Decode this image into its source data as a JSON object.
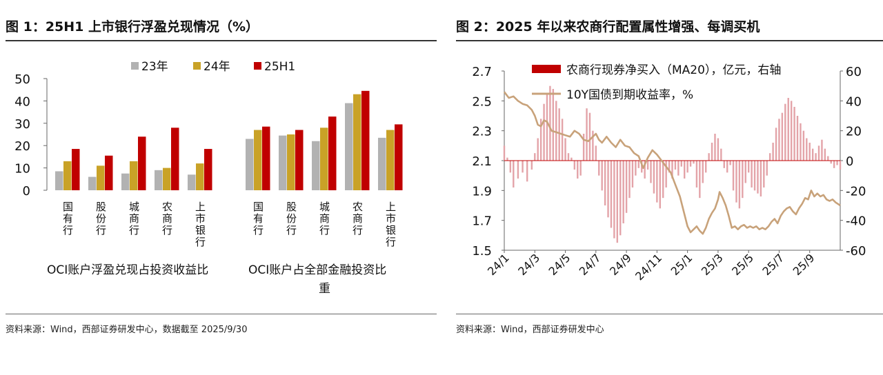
{
  "left": {
    "title": "图 1：25H1 上市银行浮盈兑现情况（%）",
    "source": "资料来源：Wind，西部证券研发中心，数据截至 2025/9/30"
  },
  "right": {
    "title": "图 2：2025 年以来农商行配置属性增强、每调买机",
    "source": "资料来源：Wind，西部证券研发中心"
  },
  "chart_data": [
    {
      "type": "bar",
      "title": "图 1：25H1 上市银行浮盈兑现情况（%）",
      "ylim": [
        0,
        50
      ],
      "yticks": [
        "0",
        "10",
        "20",
        "30",
        "40",
        "50"
      ],
      "legend": [
        {
          "name": "23年",
          "color": "#b2b2b2"
        },
        {
          "name": "24年",
          "color": "#c9a227"
        },
        {
          "name": "25H1",
          "color": "#c00000"
        }
      ],
      "groups": [
        {
          "label": "OCI账户浮盈兑现占投资收益比",
          "categories": [
            "国有行",
            "股份行",
            "城商行",
            "农商行",
            "上市银行"
          ],
          "series": [
            {
              "name": "23年",
              "values": [
                8.5,
                6,
                7.5,
                9,
                7
              ]
            },
            {
              "name": "24年",
              "values": [
                13,
                11,
                13,
                10,
                12
              ]
            },
            {
              "name": "25H1",
              "values": [
                18.5,
                15.5,
                24,
                28,
                18.5
              ]
            }
          ]
        },
        {
          "label": "OCI账户占全部金融投资比重",
          "categories": [
            "国有行",
            "股份行",
            "城商行",
            "农商行",
            "上市银行"
          ],
          "series": [
            {
              "name": "23年",
              "values": [
                23,
                24.5,
                22,
                39,
                23.5
              ]
            },
            {
              "name": "24年",
              "values": [
                27,
                25,
                28,
                43,
                27
              ]
            },
            {
              "name": "25H1",
              "values": [
                28.5,
                27,
                33,
                44.5,
                29.5
              ]
            }
          ]
        }
      ]
    },
    {
      "type": "bar+line",
      "title": "图 2：2025 年以来农商行配置属性增强、每调买机",
      "left_axis": {
        "ylim": [
          1.5,
          2.7
        ],
        "ticks": [
          "1.5",
          "1.7",
          "1.9",
          "2.1",
          "2.3",
          "2.5",
          "2.7"
        ]
      },
      "right_axis": {
        "ylim": [
          -60,
          60
        ],
        "ticks": [
          "-60",
          "-40",
          "-20",
          "0",
          "20",
          "40",
          "60"
        ]
      },
      "x_ticks": [
        "24/1",
        "24/3",
        "24/5",
        "24/7",
        "24/9",
        "24/11",
        "25/1",
        "25/3",
        "25/5",
        "25/7",
        "25/9"
      ],
      "series": [
        {
          "name": "农商行现券净买入（MA20），亿元，右轴",
          "type": "bar",
          "axis": "right",
          "color": "#c00000",
          "points": [
            [
              0.0,
              10
            ],
            [
              0.1,
              2
            ],
            [
              0.2,
              -8
            ],
            [
              0.3,
              -18
            ],
            [
              0.45,
              -12
            ],
            [
              0.6,
              -8
            ],
            [
              0.75,
              -14
            ],
            [
              0.9,
              -6
            ],
            [
              1.0,
              5
            ],
            [
              1.1,
              15
            ],
            [
              1.2,
              28
            ],
            [
              1.3,
              38
            ],
            [
              1.4,
              45
            ],
            [
              1.5,
              50
            ],
            [
              1.6,
              48
            ],
            [
              1.7,
              40
            ],
            [
              1.8,
              35
            ],
            [
              1.9,
              28
            ],
            [
              2.0,
              15
            ],
            [
              2.1,
              5
            ],
            [
              2.2,
              2
            ],
            [
              2.3,
              -6
            ],
            [
              2.4,
              -12
            ],
            [
              2.5,
              -10
            ],
            [
              2.6,
              18
            ],
            [
              2.7,
              35
            ],
            [
              2.8,
              32
            ],
            [
              2.9,
              20
            ],
            [
              3.0,
              10
            ],
            [
              3.1,
              -10
            ],
            [
              3.2,
              -20
            ],
            [
              3.3,
              -30
            ],
            [
              3.4,
              -38
            ],
            [
              3.5,
              -45
            ],
            [
              3.6,
              -52
            ],
            [
              3.7,
              -55
            ],
            [
              3.8,
              -50
            ],
            [
              3.9,
              -42
            ],
            [
              4.0,
              -35
            ],
            [
              4.1,
              -25
            ],
            [
              4.2,
              -18
            ],
            [
              4.3,
              -10
            ],
            [
              4.4,
              -5
            ],
            [
              4.5,
              -8
            ],
            [
              4.6,
              -12
            ],
            [
              4.7,
              -6
            ],
            [
              4.8,
              -15
            ],
            [
              4.9,
              -22
            ],
            [
              5.0,
              -28
            ],
            [
              5.1,
              -32
            ],
            [
              5.2,
              -25
            ],
            [
              5.3,
              -18
            ],
            [
              5.4,
              -8
            ],
            [
              5.5,
              -12
            ],
            [
              5.6,
              -6
            ],
            [
              5.7,
              -10
            ],
            [
              5.8,
              -4
            ],
            [
              5.9,
              -12
            ],
            [
              6.0,
              -8
            ],
            [
              6.1,
              -4
            ],
            [
              6.2,
              -2
            ],
            [
              6.3,
              -18
            ],
            [
              6.4,
              -25
            ],
            [
              6.5,
              -15
            ],
            [
              6.6,
              -8
            ],
            [
              6.7,
              5
            ],
            [
              6.8,
              12
            ],
            [
              6.9,
              18
            ],
            [
              7.0,
              15
            ],
            [
              7.1,
              8
            ],
            [
              7.2,
              -5
            ],
            [
              7.3,
              -8
            ],
            [
              7.4,
              -3
            ],
            [
              7.5,
              -20
            ],
            [
              7.6,
              -28
            ],
            [
              7.7,
              -32
            ],
            [
              7.8,
              -25
            ],
            [
              7.9,
              -15
            ],
            [
              8.0,
              -8
            ],
            [
              8.1,
              -18
            ],
            [
              8.2,
              -20
            ],
            [
              8.3,
              -22
            ],
            [
              8.4,
              -24
            ],
            [
              8.5,
              -18
            ],
            [
              8.6,
              -10
            ],
            [
              8.7,
              5
            ],
            [
              8.8,
              12
            ],
            [
              8.9,
              22
            ],
            [
              9.0,
              28
            ],
            [
              9.1,
              32
            ],
            [
              9.2,
              38
            ],
            [
              9.3,
              42
            ],
            [
              9.4,
              40
            ],
            [
              9.5,
              36
            ],
            [
              9.6,
              30
            ],
            [
              9.7,
              25
            ],
            [
              9.8,
              20
            ],
            [
              9.9,
              15
            ],
            [
              10.0,
              12
            ],
            [
              10.1,
              8
            ],
            [
              10.2,
              5
            ],
            [
              10.3,
              10
            ],
            [
              10.4,
              14
            ],
            [
              10.5,
              8
            ],
            [
              10.6,
              3
            ],
            [
              10.7,
              -2
            ],
            [
              10.8,
              -5
            ],
            [
              10.9,
              -3
            ],
            [
              11.0,
              -6
            ]
          ]
        },
        {
          "name": "10Y国债到期收益率，%",
          "type": "line",
          "axis": "left",
          "color": "#c8a27a",
          "points": [
            [
              0.0,
              2.56
            ],
            [
              0.15,
              2.52
            ],
            [
              0.3,
              2.53
            ],
            [
              0.45,
              2.5
            ],
            [
              0.6,
              2.48
            ],
            [
              0.75,
              2.47
            ],
            [
              0.9,
              2.44
            ],
            [
              1.0,
              2.4
            ],
            [
              1.1,
              2.34
            ],
            [
              1.2,
              2.33
            ],
            [
              1.3,
              2.37
            ],
            [
              1.4,
              2.36
            ],
            [
              1.55,
              2.3
            ],
            [
              1.7,
              2.29
            ],
            [
              1.85,
              2.28
            ],
            [
              2.0,
              2.27
            ],
            [
              2.15,
              2.26
            ],
            [
              2.3,
              2.3
            ],
            [
              2.45,
              2.28
            ],
            [
              2.6,
              2.24
            ],
            [
              2.75,
              2.23
            ],
            [
              2.9,
              2.26
            ],
            [
              3.0,
              2.28
            ],
            [
              3.1,
              2.24
            ],
            [
              3.2,
              2.22
            ],
            [
              3.35,
              2.26
            ],
            [
              3.5,
              2.22
            ],
            [
              3.65,
              2.19
            ],
            [
              3.8,
              2.24
            ],
            [
              3.95,
              2.2
            ],
            [
              4.1,
              2.19
            ],
            [
              4.25,
              2.15
            ],
            [
              4.4,
              2.13
            ],
            [
              4.55,
              2.05
            ],
            [
              4.7,
              2.12
            ],
            [
              4.85,
              2.17
            ],
            [
              5.0,
              2.14
            ],
            [
              5.15,
              2.1
            ],
            [
              5.3,
              2.06
            ],
            [
              5.45,
              2.02
            ],
            [
              5.6,
              1.94
            ],
            [
              5.75,
              1.86
            ],
            [
              5.9,
              1.74
            ],
            [
              6.0,
              1.66
            ],
            [
              6.1,
              1.62
            ],
            [
              6.2,
              1.64
            ],
            [
              6.3,
              1.66
            ],
            [
              6.4,
              1.63
            ],
            [
              6.5,
              1.61
            ],
            [
              6.6,
              1.65
            ],
            [
              6.7,
              1.71
            ],
            [
              6.8,
              1.75
            ],
            [
              6.9,
              1.78
            ],
            [
              7.0,
              1.84
            ],
            [
              7.05,
              1.89
            ],
            [
              7.15,
              1.85
            ],
            [
              7.25,
              1.8
            ],
            [
              7.35,
              1.73
            ],
            [
              7.45,
              1.65
            ],
            [
              7.55,
              1.66
            ],
            [
              7.65,
              1.64
            ],
            [
              7.75,
              1.66
            ],
            [
              7.85,
              1.67
            ],
            [
              7.95,
              1.65
            ],
            [
              8.05,
              1.66
            ],
            [
              8.15,
              1.65
            ],
            [
              8.25,
              1.66
            ],
            [
              8.35,
              1.64
            ],
            [
              8.45,
              1.65
            ],
            [
              8.55,
              1.64
            ],
            [
              8.65,
              1.66
            ],
            [
              8.75,
              1.69
            ],
            [
              8.85,
              1.71
            ],
            [
              8.95,
              1.68
            ],
            [
              9.05,
              1.73
            ],
            [
              9.15,
              1.76
            ],
            [
              9.25,
              1.78
            ],
            [
              9.35,
              1.79
            ],
            [
              9.45,
              1.76
            ],
            [
              9.55,
              1.74
            ],
            [
              9.65,
              1.78
            ],
            [
              9.75,
              1.81
            ],
            [
              9.85,
              1.85
            ],
            [
              9.95,
              1.84
            ],
            [
              10.05,
              1.9
            ],
            [
              10.15,
              1.86
            ],
            [
              10.25,
              1.88
            ],
            [
              10.35,
              1.86
            ],
            [
              10.45,
              1.87
            ],
            [
              10.55,
              1.84
            ],
            [
              10.65,
              1.83
            ],
            [
              10.75,
              1.84
            ],
            [
              10.85,
              1.82
            ],
            [
              11.0,
              1.8
            ]
          ]
        }
      ]
    }
  ]
}
